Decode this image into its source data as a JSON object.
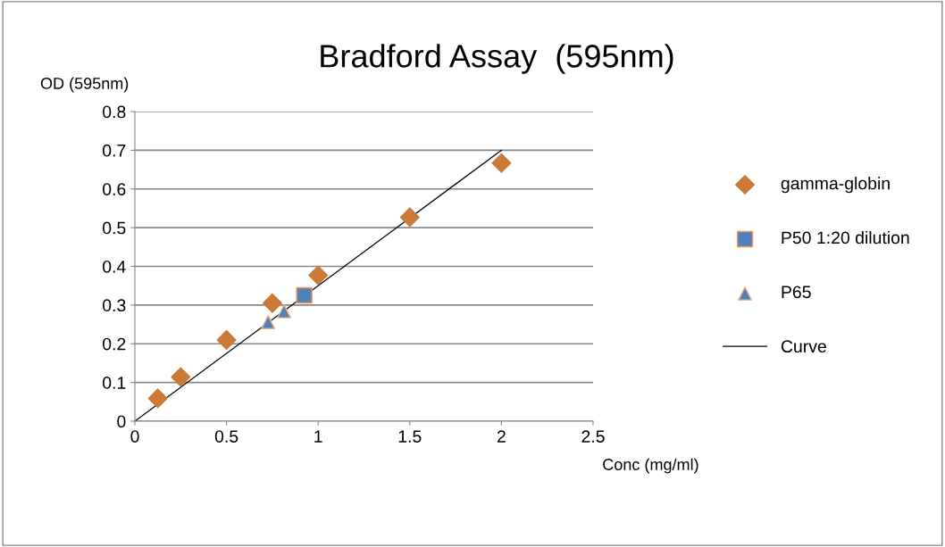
{
  "chart_data": {
    "type": "scatter",
    "title": "Bradford Assay  (595nm)",
    "xlabel": "Conc (mg/ml)",
    "ylabel": "OD (595nm)",
    "xlim": [
      0,
      2.5
    ],
    "xticks": [
      0,
      0.5,
      1,
      1.5,
      2,
      2.5
    ],
    "ylim": [
      0,
      0.8
    ],
    "yticks": [
      0,
      0.1,
      0.2,
      0.3,
      0.4,
      0.5,
      0.6,
      0.7,
      0.8
    ],
    "grid": "y",
    "legend": "right",
    "series": [
      {
        "name": "gamma-globin",
        "marker": "diamond",
        "color": "#cc7a38",
        "x": [
          0.125,
          0.25,
          0.5,
          0.75,
          1,
          1.5,
          2
        ],
        "values": [
          0.059,
          0.114,
          0.21,
          0.305,
          0.377,
          0.527,
          0.667
        ]
      },
      {
        "name": "P50 1:20 dilution",
        "marker": "square",
        "color": "#4f81bd",
        "x": [
          0.924
        ],
        "values": [
          0.325
        ]
      },
      {
        "name": "P65",
        "marker": "triangle",
        "color": "#4f81bd",
        "x": [
          0.727,
          0.814
        ],
        "values": [
          0.256,
          0.284
        ]
      },
      {
        "name": "Curve",
        "type": "line",
        "marker": "none",
        "color": "#000000",
        "x": [
          0,
          2
        ],
        "values": [
          0,
          0.7
        ]
      }
    ]
  }
}
